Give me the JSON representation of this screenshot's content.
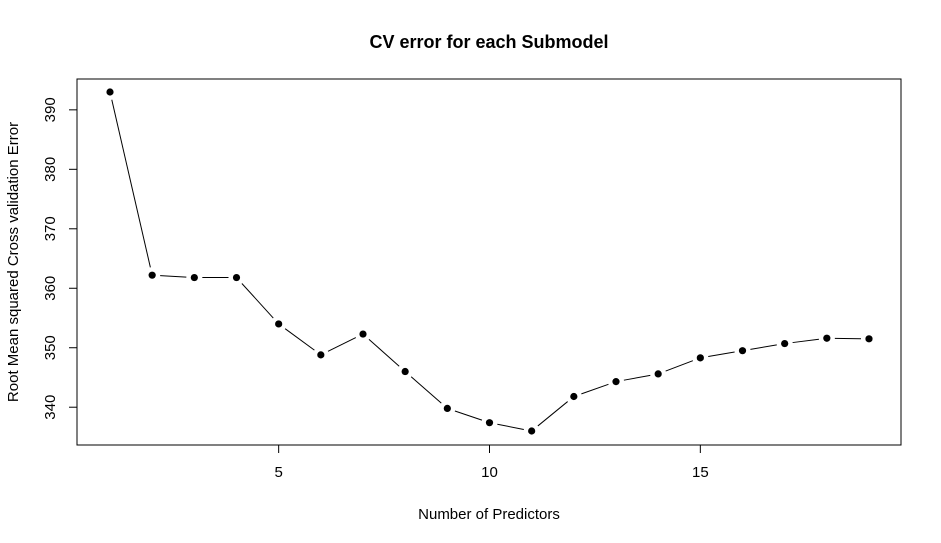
{
  "chart_data": {
    "type": "line",
    "title": "CV error for each Submodel",
    "xlabel": "Number of Predictors",
    "ylabel": "Root Mean squared Cross validation Error",
    "x": [
      1,
      2,
      3,
      4,
      5,
      6,
      7,
      8,
      9,
      10,
      11,
      12,
      13,
      14,
      15,
      16,
      17,
      18,
      19
    ],
    "values": [
      393.0,
      362.2,
      361.8,
      361.8,
      354.0,
      348.8,
      352.3,
      346.0,
      339.8,
      337.4,
      336.0,
      341.8,
      344.3,
      345.6,
      348.3,
      349.5,
      350.7,
      351.6,
      351.5
    ],
    "xlim": [
      1,
      19
    ],
    "ylim": [
      336,
      393
    ],
    "xticks": [
      5,
      10,
      15
    ],
    "yticks": [
      340,
      350,
      360,
      370,
      380,
      390
    ],
    "grid": false,
    "legend": "none"
  }
}
